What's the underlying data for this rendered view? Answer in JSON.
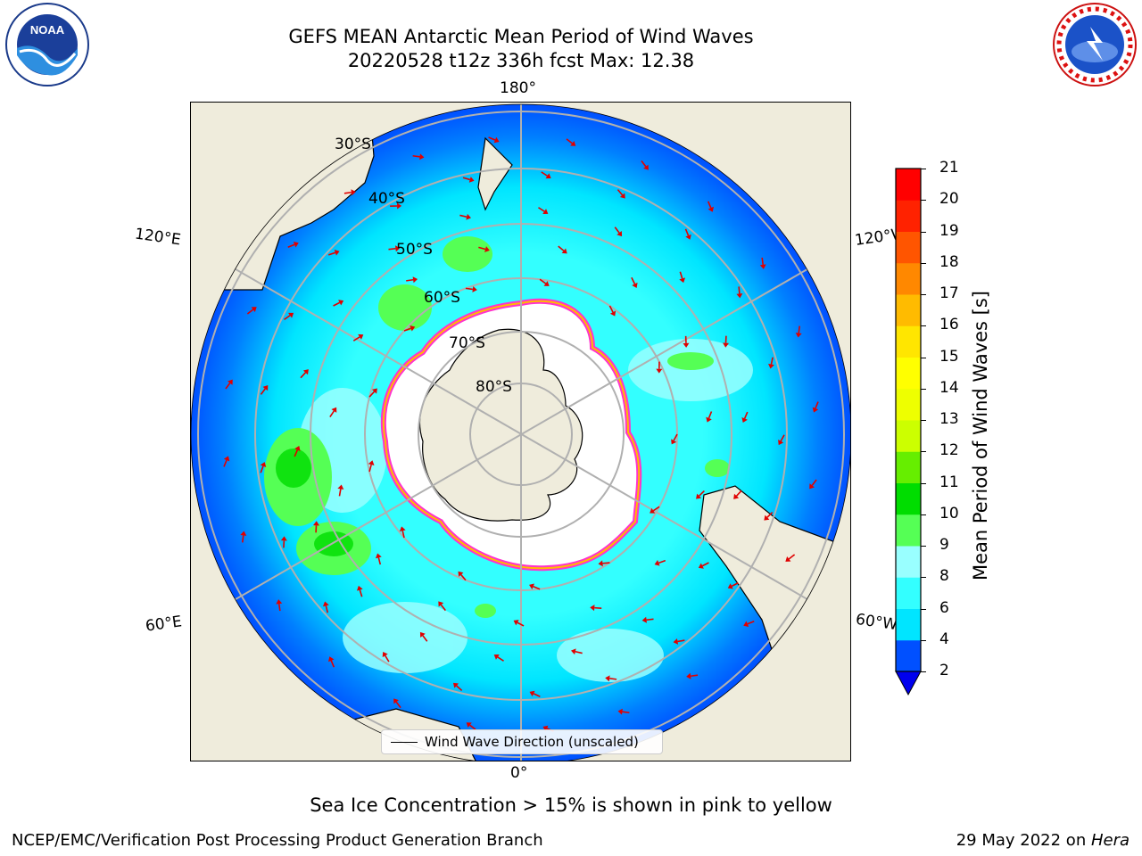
{
  "header": {
    "title_line1": "GEFS MEAN Antarctic Mean Period of Wind Waves",
    "title_line2": "20220528 t12z 336h fcst   Max: 12.38"
  },
  "logos": {
    "left": "noara-logo",
    "right": "nws-logo"
  },
  "map": {
    "projection": "south-polar-stereographic",
    "meridian_labels": {
      "top": "180°",
      "bottom": "0°",
      "left_upper": "120°E",
      "left_lower": "60°E",
      "right_upper": "120°W",
      "right_lower": "60°W"
    },
    "latitude_labels": [
      "30°S",
      "40°S",
      "50°S",
      "60°S",
      "70°S",
      "80°S"
    ],
    "colors": {
      "land": "#efecdc",
      "ice": "#ffffff",
      "ice_edge": "#ff33cc",
      "grid": "#b0b0b0",
      "arrow": "#e00000"
    }
  },
  "legend": {
    "line_label": "Wind Wave Direction (unscaled)"
  },
  "colorbar": {
    "label": "Mean Period of Wind Waves [s]",
    "ticks": [
      "2",
      "4",
      "6",
      "8",
      "9",
      "10",
      "11",
      "12",
      "13",
      "14",
      "15",
      "16",
      "17",
      "18",
      "19",
      "20",
      "21"
    ],
    "colors": [
      "#0050ff",
      "#00e5ff",
      "#33ffff",
      "#99ffff",
      "#55ff55",
      "#00dd00",
      "#66ee00",
      "#ccff00",
      "#eeff00",
      "#ffff00",
      "#ffe600",
      "#ffbb00",
      "#ff8800",
      "#ff5500",
      "#ff2200",
      "#ff0000"
    ],
    "under_color": "#0000ee"
  },
  "caption": "Sea Ice Concentration > 15% is shown in pink to yellow",
  "footer": {
    "left": "NCEP/EMC/Verification Post Processing Product Generation Branch",
    "right_prefix": "29 May 2022 on ",
    "right_machine": "Hera"
  }
}
